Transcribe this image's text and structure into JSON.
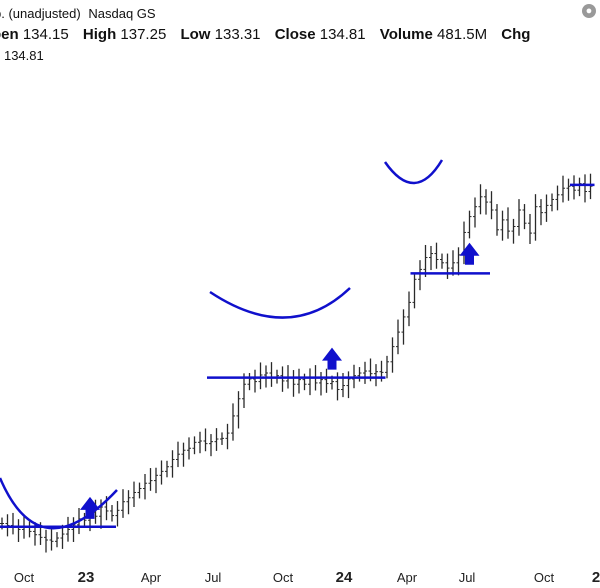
{
  "header": {
    "title": "p. (unadjusted)",
    "exchange": "Nasdaq GS",
    "open_label": "pen",
    "open_value": "134.15",
    "high_label": "High",
    "high_value": "137.25",
    "low_label": "Low",
    "low_value": "133.31",
    "close_label": "Close",
    "close_value": "134.81",
    "volume_label": "Volume",
    "volume_value": "481.5M",
    "chg_label": "Chg",
    "last_prefix": ")",
    "last_value": "134.81"
  },
  "chart_data": {
    "type": "ohlc",
    "title": "",
    "x_tick_labels": [
      "Oct",
      "23",
      "Apr",
      "Jul",
      "Oct",
      "24",
      "Apr",
      "Jul",
      "Oct",
      "2"
    ],
    "bar_color": "#2a2a2a",
    "annotation_color": "#1010cc",
    "closes": [
      14.5,
      14.2,
      14.0,
      13.6,
      13.9,
      13.3,
      12.8,
      12.4,
      12.0,
      11.8,
      12.3,
      12.9,
      13.6,
      14.3,
      15.2,
      15.0,
      16.2,
      15.6,
      17.0,
      16.4,
      15.7,
      16.5,
      17.8,
      18.4,
      19.2,
      19.8,
      20.6,
      21.0,
      21.8,
      22.4,
      23.1,
      24.2,
      25.0,
      25.6,
      25.9,
      26.8,
      27.0,
      26.6,
      26.9,
      27.3,
      27.4,
      28.2,
      30.8,
      33.4,
      35.6,
      36.4,
      36.0,
      37.0,
      37.3,
      36.6,
      36.9,
      36.1,
      36.6,
      35.6,
      36.3,
      35.6,
      36.6,
      35.8,
      36.3,
      35.7,
      36.0,
      34.8,
      35.4,
      36.4,
      36.9,
      37.3,
      37.6,
      37.2,
      37.5,
      37.4,
      39.0,
      41.3,
      43.5,
      45.8,
      48.0,
      51.5,
      53.0,
      54.8,
      55.4,
      54.5,
      54.0,
      53.2,
      54.0,
      55.2,
      58.6,
      61.0,
      62.5,
      64.0,
      63.2,
      62.0,
      59.0,
      60.5,
      58.8,
      59.5,
      62.0,
      60.0,
      58.5,
      62.5,
      61.6,
      62.7,
      63.6,
      64.3,
      65.3,
      65.6,
      65.0,
      66.0,
      64.8,
      65.6
    ],
    "resistance_levels": [
      {
        "value": 14.0,
        "from_index": 0,
        "to_index": 20
      },
      {
        "value": 36.6,
        "from_index": 38,
        "to_index": 69
      },
      {
        "value": 52.4,
        "from_index": 75,
        "to_index": 88
      },
      {
        "value": 65.8,
        "from_index": 104,
        "to_index": 107
      }
    ],
    "breakout_arrows": [
      {
        "index": 16,
        "value": 14.3
      },
      {
        "index": 60,
        "value": 36.9
      },
      {
        "index": 85,
        "value": 52.8
      }
    ]
  }
}
